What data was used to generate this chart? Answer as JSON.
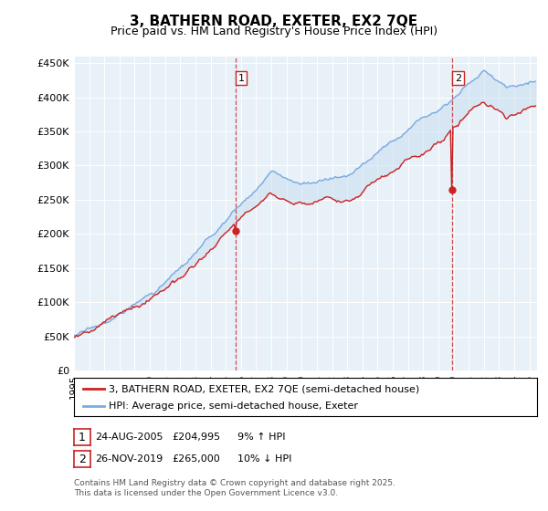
{
  "title": "3, BATHERN ROAD, EXETER, EX2 7QE",
  "subtitle": "Price paid vs. HM Land Registry's House Price Index (HPI)",
  "ylabel_ticks": [
    "£0",
    "£50K",
    "£100K",
    "£150K",
    "£200K",
    "£250K",
    "£300K",
    "£350K",
    "£400K",
    "£450K"
  ],
  "ytick_values": [
    0,
    50000,
    100000,
    150000,
    200000,
    250000,
    300000,
    350000,
    400000,
    450000
  ],
  "ylim": [
    0,
    460000
  ],
  "xlim_start": 1995.0,
  "xlim_end": 2025.5,
  "sale1_x": 2005.65,
  "sale1_y": 204995,
  "sale1_label": "1",
  "sale2_x": 2019.92,
  "sale2_y": 265000,
  "sale2_label": "2",
  "hpi_color": "#7aabe0",
  "hpi_fill_color": "#c8ddf0",
  "price_color": "#cc2222",
  "background_color": "#e8f0f8",
  "legend_label_price": "3, BATHERN ROAD, EXETER, EX2 7QE (semi-detached house)",
  "legend_label_hpi": "HPI: Average price, semi-detached house, Exeter",
  "note1_date": "24-AUG-2005",
  "note1_price": "£204,995",
  "note1_hpi": "9% ↑ HPI",
  "note2_date": "26-NOV-2019",
  "note2_price": "£265,000",
  "note2_hpi": "10% ↓ HPI",
  "footer": "Contains HM Land Registry data © Crown copyright and database right 2025.\nThis data is licensed under the Open Government Licence v3.0."
}
